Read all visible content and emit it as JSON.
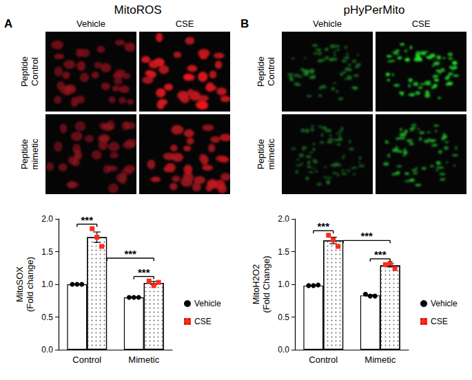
{
  "chart_data": [
    {
      "type": "bar",
      "panel": "A",
      "title": "MitoROS",
      "image_columns": [
        "Vehicle",
        "CSE"
      ],
      "image_rows": [
        "Peptide Control",
        "Peptide mimetic"
      ],
      "y_label": "MitoSOX (Fold change)",
      "categories": [
        "Control",
        "Mimetic"
      ],
      "series": [
        {
          "name": "Vehicle",
          "color": "#000000",
          "marker": "circle",
          "values": [
            1.0,
            0.8
          ],
          "errors": [
            0.005,
            0.005
          ],
          "points": [
            [
              1.0,
              1.0,
              1.0
            ],
            [
              0.8,
              0.8,
              0.8
            ]
          ]
        },
        {
          "name": "CSE",
          "color": "#ff2a1a",
          "marker": "square",
          "values": [
            1.72,
            1.02
          ],
          "errors": [
            0.08,
            0.025
          ],
          "points": [
            [
              1.85,
              1.72,
              1.58
            ],
            [
              1.05,
              0.98,
              1.03
            ]
          ]
        }
      ],
      "ylim": [
        0,
        2
      ],
      "yticks": [
        {
          "value": 0,
          "label": "0.0"
        },
        {
          "value": 0.5,
          "label": "0.5"
        },
        {
          "value": 1,
          "label": "1.0"
        },
        {
          "value": 1.5,
          "label": "1.5"
        },
        {
          "value": 2,
          "label": "2.0"
        }
      ],
      "grid": false,
      "legend": "right",
      "annotations": [
        {
          "label": "***",
          "from": [
            "Control",
            "Vehicle"
          ],
          "to": [
            "Control",
            "CSE"
          ]
        },
        {
          "label": "***",
          "from": [
            "Control",
            "CSE"
          ],
          "to": [
            "Mimetic",
            "CSE"
          ]
        },
        {
          "label": "***",
          "from": [
            "Mimetic",
            "Vehicle"
          ],
          "to": [
            "Mimetic",
            "CSE"
          ]
        }
      ]
    },
    {
      "type": "bar",
      "panel": "B",
      "title": "pHyPerMito",
      "image_columns": [
        "Vehicle",
        "CSE"
      ],
      "image_rows": [
        "Peptide Control",
        "Peptide mimetic"
      ],
      "y_label": "MitoH2O2 (Fold Change)",
      "categories": [
        "Control",
        "Mimetic"
      ],
      "series": [
        {
          "name": "Vehicle",
          "color": "#000000",
          "marker": "circle",
          "values": [
            0.98,
            0.83
          ],
          "errors": [
            0.005,
            0.01
          ],
          "points": [
            [
              0.98,
              0.98,
              0.99
            ],
            [
              0.85,
              0.82,
              0.82
            ]
          ]
        },
        {
          "name": "CSE",
          "color": "#ff2a1a",
          "marker": "square",
          "values": [
            1.67,
            1.29
          ],
          "errors": [
            0.05,
            0.025
          ],
          "points": [
            [
              1.75,
              1.68,
              1.58
            ],
            [
              1.3,
              1.32,
              1.24
            ]
          ]
        }
      ],
      "ylim": [
        0,
        2
      ],
      "yticks": [
        {
          "value": 0,
          "label": "0.0"
        },
        {
          "value": 0.5,
          "label": "0.5"
        },
        {
          "value": 1,
          "label": "1.0"
        },
        {
          "value": 1.5,
          "label": "1.5"
        },
        {
          "value": 2,
          "label": "2.0"
        }
      ],
      "grid": false,
      "legend": "right",
      "annotations": [
        {
          "label": "***",
          "from": [
            "Control",
            "Vehicle"
          ],
          "to": [
            "Control",
            "CSE"
          ]
        },
        {
          "label": "***",
          "from": [
            "Control",
            "CSE"
          ],
          "to": [
            "Mimetic",
            "CSE"
          ]
        },
        {
          "label": "***",
          "from": [
            "Mimetic",
            "Vehicle"
          ],
          "to": [
            "Mimetic",
            "CSE"
          ]
        }
      ]
    }
  ]
}
